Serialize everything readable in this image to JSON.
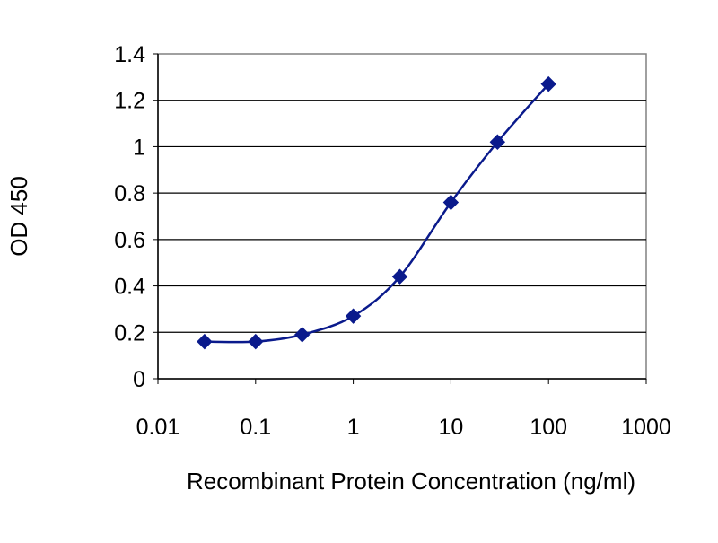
{
  "chart_data": {
    "type": "line",
    "title": "",
    "xlabel": "Recombinant Protein Concentration (ng/ml)",
    "ylabel": "OD 450",
    "x_scale": "log",
    "xlim": [
      0.01,
      1000
    ],
    "ylim": [
      0,
      1.4
    ],
    "x_ticks": [
      0.01,
      0.1,
      1,
      10,
      100,
      1000
    ],
    "x_tick_labels": [
      "0.01",
      "0.1",
      "1",
      "10",
      "100",
      "1000"
    ],
    "y_ticks": [
      0,
      0.2,
      0.4,
      0.6,
      0.8,
      1,
      1.2,
      1.4
    ],
    "y_tick_labels": [
      "0",
      "0.2",
      "0.4",
      "0.6",
      "0.8",
      "1",
      "1.2",
      "1.4"
    ],
    "grid": "horizontal",
    "legend": "none",
    "series": [
      {
        "color": "#0a1a8c",
        "x": [
          0.03,
          0.1,
          0.3,
          1,
          3,
          10,
          30,
          100
        ],
        "y": [
          0.16,
          0.16,
          0.19,
          0.27,
          0.44,
          0.76,
          1.02,
          1.27
        ]
      }
    ]
  }
}
